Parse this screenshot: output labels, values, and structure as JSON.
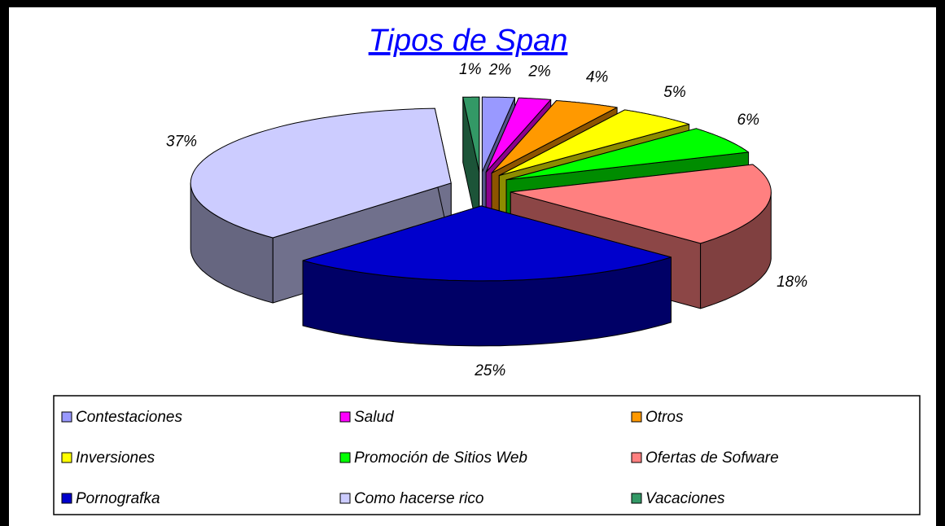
{
  "chart_data": {
    "type": "pie",
    "title": "Tipos de Span",
    "categories": [
      "Contestaciones",
      "Salud",
      "Otros",
      "Inversiones",
      "Promoción de Sitios Web",
      "Ofertas de Sofware",
      "Pornografka",
      "Como hacerse rico",
      "Vacaciones"
    ],
    "values": [
      2,
      2,
      4,
      5,
      6,
      18,
      25,
      37,
      1
    ],
    "value_labels": [
      "2%",
      "2%",
      "4%",
      "5%",
      "6%",
      "18%",
      "25%",
      "37%",
      "1%"
    ],
    "colors": [
      "#9999ff",
      "#ff00ff",
      "#ff9900",
      "#ffff00",
      "#00ff00",
      "#ff8080",
      "#0000cc",
      "#ccccff",
      "#339966"
    ],
    "legend": "bottom"
  }
}
